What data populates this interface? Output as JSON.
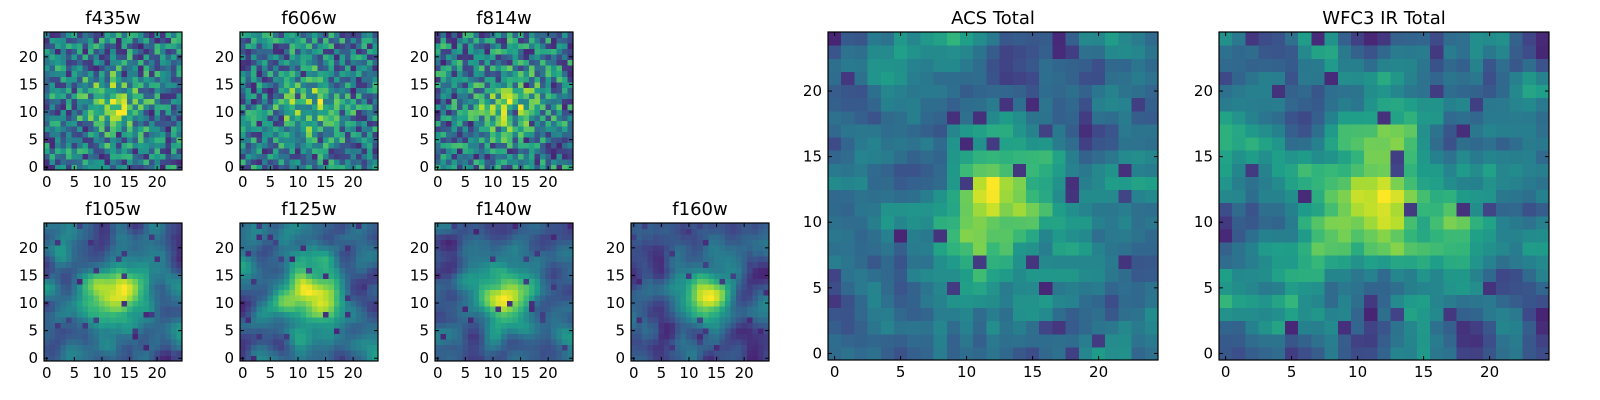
{
  "chart_data": [
    {
      "type": "heatmap",
      "title": "f435w",
      "xticks": [
        "0",
        "5",
        "10",
        "15",
        "20"
      ],
      "yticks": [
        "0",
        "5",
        "10",
        "15",
        "20"
      ],
      "xlim": [
        -0.5,
        24.5
      ],
      "ylim": [
        -0.5,
        24.5
      ],
      "grid_size": [
        25,
        25
      ],
      "colormap": "viridis",
      "texture": "noisy"
    },
    {
      "type": "heatmap",
      "title": "f606w",
      "xticks": [
        "0",
        "5",
        "10",
        "15",
        "20"
      ],
      "yticks": [
        "0",
        "5",
        "10",
        "15",
        "20"
      ],
      "xlim": [
        -0.5,
        24.5
      ],
      "ylim": [
        -0.5,
        24.5
      ],
      "grid_size": [
        25,
        25
      ],
      "colormap": "viridis",
      "texture": "noisy"
    },
    {
      "type": "heatmap",
      "title": "f814w",
      "xticks": [
        "0",
        "5",
        "10",
        "15",
        "20"
      ],
      "yticks": [
        "0",
        "5",
        "10",
        "15",
        "20"
      ],
      "xlim": [
        -0.5,
        24.5
      ],
      "ylim": [
        -0.5,
        24.5
      ],
      "grid_size": [
        25,
        25
      ],
      "colormap": "viridis",
      "texture": "noisy"
    },
    {
      "type": "heatmap",
      "title": "f105w",
      "xticks": [
        "0",
        "5",
        "10",
        "15",
        "20"
      ],
      "yticks": [
        "0",
        "5",
        "10",
        "15",
        "20"
      ],
      "xlim": [
        -0.5,
        24.5
      ],
      "ylim": [
        -0.5,
        24.5
      ],
      "grid_size": [
        25,
        25
      ],
      "colormap": "viridis",
      "texture": "smooth"
    },
    {
      "type": "heatmap",
      "title": "f125w",
      "xticks": [
        "0",
        "5",
        "10",
        "15",
        "20"
      ],
      "yticks": [
        "0",
        "5",
        "10",
        "15",
        "20"
      ],
      "xlim": [
        -0.5,
        24.5
      ],
      "ylim": [
        -0.5,
        24.5
      ],
      "grid_size": [
        25,
        25
      ],
      "colormap": "viridis",
      "texture": "smooth"
    },
    {
      "type": "heatmap",
      "title": "f140w",
      "xticks": [
        "0",
        "5",
        "10",
        "15",
        "20"
      ],
      "yticks": [
        "0",
        "5",
        "10",
        "15",
        "20"
      ],
      "xlim": [
        -0.5,
        24.5
      ],
      "ylim": [
        -0.5,
        24.5
      ],
      "grid_size": [
        25,
        25
      ],
      "colormap": "viridis",
      "texture": "smooth"
    },
    {
      "type": "heatmap",
      "title": "f160w",
      "xticks": [
        "0",
        "5",
        "10",
        "15",
        "20"
      ],
      "yticks": [
        "0",
        "5",
        "10",
        "15",
        "20"
      ],
      "xlim": [
        -0.5,
        24.5
      ],
      "ylim": [
        -0.5,
        24.5
      ],
      "grid_size": [
        25,
        25
      ],
      "colormap": "viridis",
      "texture": "smooth"
    },
    {
      "type": "heatmap",
      "title": "ACS Total",
      "xticks": [
        "0",
        "5",
        "10",
        "15",
        "20"
      ],
      "yticks": [
        "0",
        "5",
        "10",
        "15",
        "20"
      ],
      "xlim": [
        -0.5,
        24.5
      ],
      "ylim": [
        -0.5,
        24.5
      ],
      "grid_size": [
        25,
        25
      ],
      "colormap": "viridis",
      "texture": "blocky"
    },
    {
      "type": "heatmap",
      "title": "WFC3 IR Total",
      "xticks": [
        "0",
        "5",
        "10",
        "15",
        "20"
      ],
      "yticks": [
        "0",
        "5",
        "10",
        "15",
        "20"
      ],
      "xlim": [
        -0.5,
        24.5
      ],
      "ylim": [
        -0.5,
        24.5
      ],
      "grid_size": [
        25,
        25
      ],
      "colormap": "viridis",
      "texture": "blocky"
    }
  ]
}
